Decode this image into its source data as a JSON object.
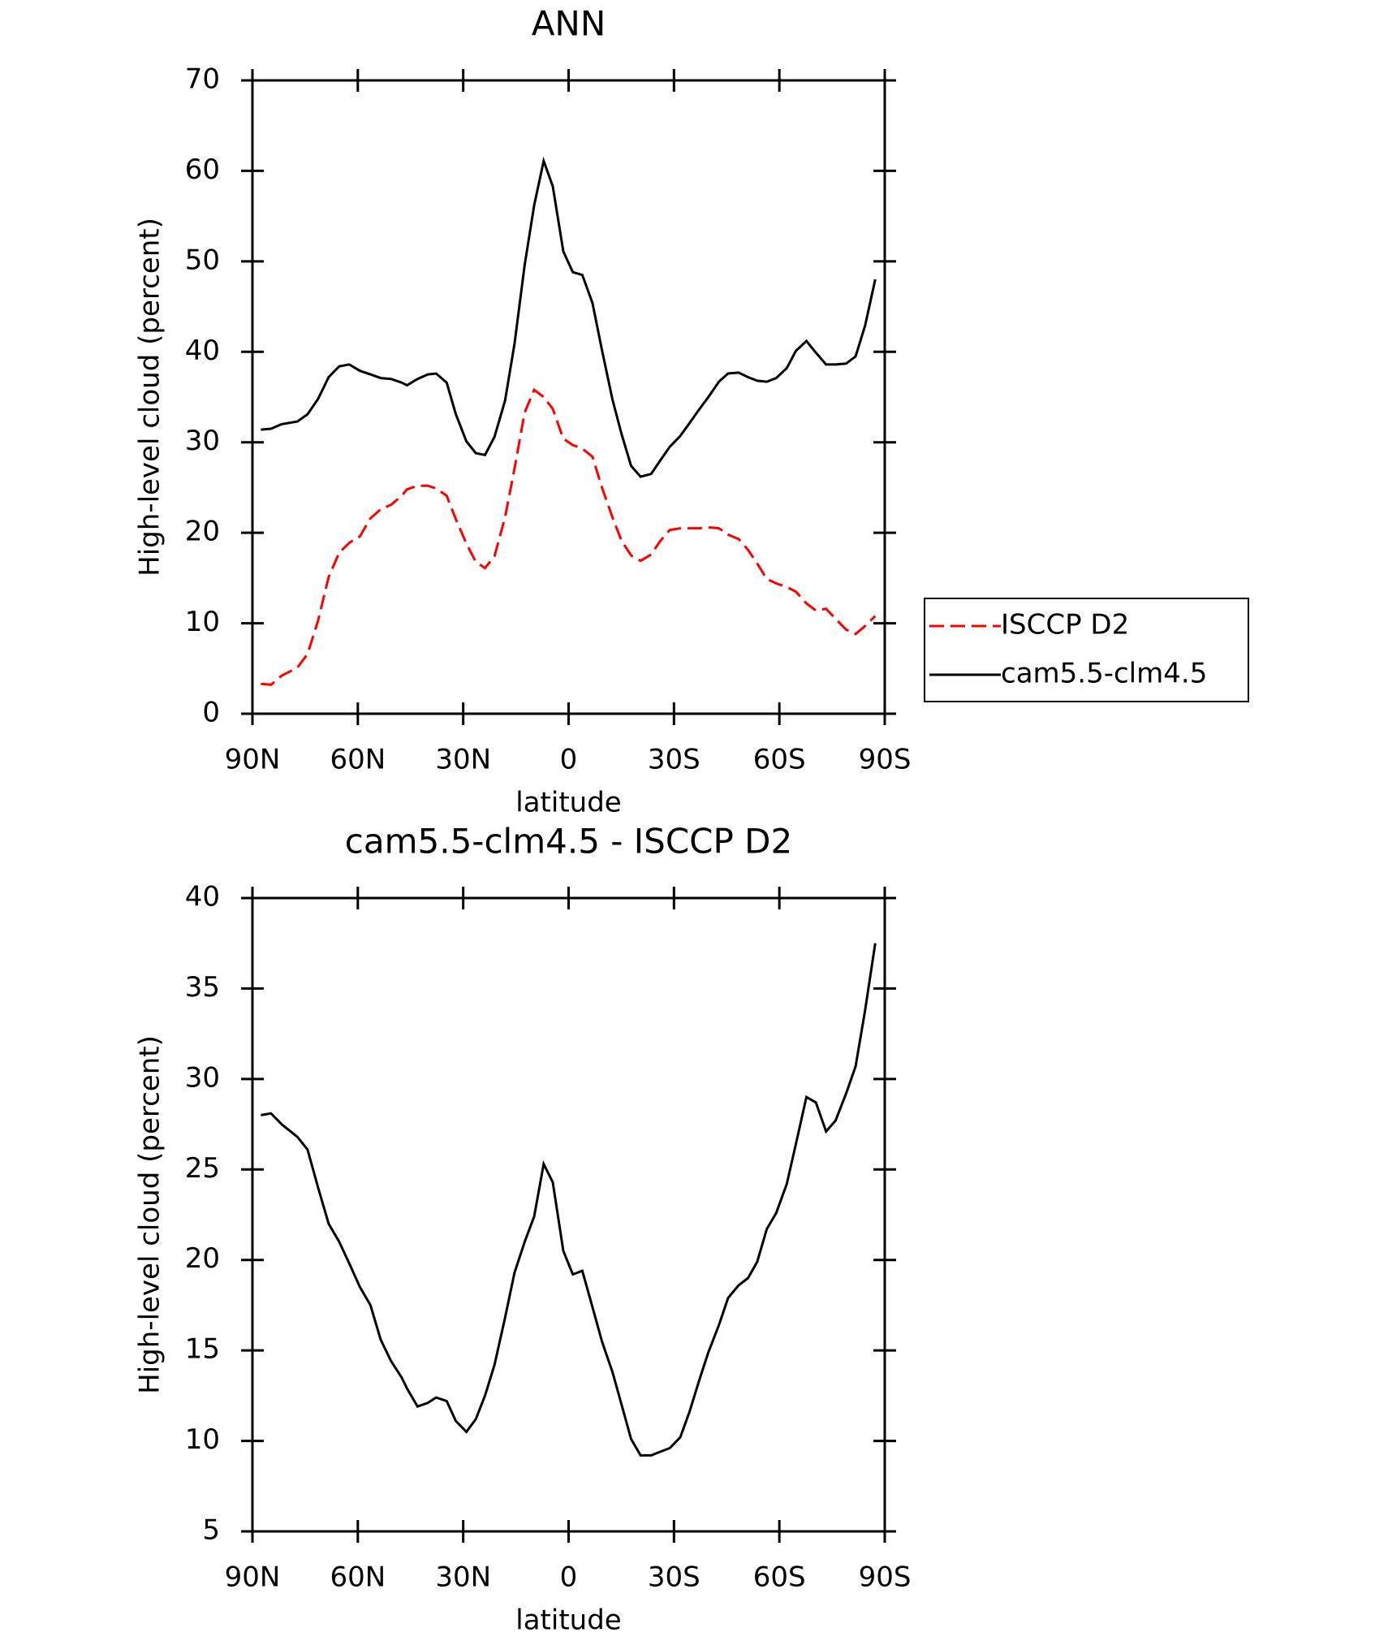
{
  "chart_data": [
    {
      "type": "line",
      "title": "ANN",
      "xlabel": "latitude",
      "ylabel": "High-level cloud (percent)",
      "x": [
        87.6,
        84.7,
        81.7,
        77.2,
        74.3,
        71.3,
        68.3,
        65.3,
        62.4,
        59.4,
        56.4,
        53.5,
        50.5,
        47.5,
        46,
        43,
        40.1,
        37.7,
        34.7,
        32.1,
        29.1,
        26.4,
        23.8,
        21.1,
        18.1,
        15.4,
        12.5,
        9.8,
        7.1,
        4.5,
        1.5,
        -1.2,
        -3.9,
        -6.8,
        -9.5,
        -12.5,
        -15.1,
        -17.8,
        -20.5,
        -23.5,
        -26.1,
        -28.8,
        -31.8,
        -34.4,
        -37.1,
        -39.8,
        -42.8,
        -45.4,
        -48.4,
        -51.1,
        -53.7,
        -56.4,
        -59.1,
        -62.1,
        -64.7,
        -67.7,
        -70.4,
        -73.3,
        -76,
        -79,
        -81.7,
        -84.4,
        -87.3
      ],
      "series": [
        {
          "name": "ISCCP D2",
          "color": "#ff0000",
          "dash": "dashed",
          "values": [
            3.3,
            3.2,
            4.2,
            5.1,
            6.6,
            10.3,
            15.1,
            17.8,
            18.9,
            19.6,
            21.6,
            22.6,
            23.1,
            24.1,
            24.8,
            25.2,
            25.2,
            24.9,
            24.1,
            21.5,
            18.8,
            16.8,
            16.1,
            17.4,
            21.7,
            27.1,
            33.3,
            35.8,
            35,
            33.7,
            30.4,
            29.7,
            29.3,
            28.4,
            25,
            21.7,
            19.1,
            17.5,
            16.9,
            17.6,
            19.1,
            20.3,
            20.5,
            20.5,
            20.5,
            20.6,
            20.5,
            19.8,
            19.3,
            18.1,
            16.6,
            14.9,
            14.4,
            14,
            13.5,
            12.2,
            11.4,
            11.6,
            10.5,
            9.3,
            8.8,
            9.7,
            10.8
          ]
        },
        {
          "name": "cam5.5-clm4.5",
          "color": "#000000",
          "dash": "solid",
          "values": [
            31.4,
            31.5,
            32,
            32.3,
            33.1,
            34.8,
            37.2,
            38.4,
            38.6,
            37.9,
            37.5,
            37.1,
            37,
            36.6,
            36.3,
            37,
            37.5,
            37.6,
            36.6,
            33.1,
            30.1,
            28.8,
            28.6,
            30.6,
            34.6,
            40.9,
            49.6,
            56.2,
            61.1,
            58.3,
            51.1,
            48.8,
            48.5,
            45.4,
            40.2,
            34.7,
            30.9,
            27.4,
            26.2,
            26.5,
            28,
            29.5,
            30.7,
            32.1,
            33.6,
            35,
            36.7,
            37.6,
            37.7,
            37.2,
            36.8,
            36.7,
            37.1,
            38.2,
            40.1,
            41.2,
            39.9,
            38.6,
            38.6,
            38.7,
            39.5,
            42.9,
            48
          ]
        }
      ],
      "xlim": [
        90,
        -90
      ],
      "xticks": [
        {
          "value": 90,
          "label": "90N"
        },
        {
          "value": 60,
          "label": "60N"
        },
        {
          "value": 30,
          "label": "30N"
        },
        0,
        {
          "value": -30,
          "label": "30S"
        },
        {
          "value": -60,
          "label": "60S"
        },
        {
          "value": -90,
          "label": "90S"
        }
      ],
      "ylim": [
        0,
        70
      ],
      "yticks": [
        0,
        10,
        20,
        30,
        40,
        50,
        60,
        70
      ],
      "legend": "right"
    },
    {
      "type": "line",
      "title": "cam5.5-clm4.5 - ISCCP D2",
      "xlabel": "latitude",
      "ylabel": "High-level cloud (percent)",
      "x": [
        87.6,
        84.7,
        81.7,
        77.2,
        74.3,
        71.3,
        68.3,
        65.3,
        62.4,
        59.4,
        56.4,
        53.5,
        50.5,
        47.5,
        46,
        43,
        40.1,
        37.7,
        34.7,
        32.1,
        29.1,
        26.4,
        23.8,
        21.1,
        18.1,
        15.4,
        12.5,
        9.8,
        7.1,
        4.5,
        1.5,
        -1.2,
        -3.9,
        -6.8,
        -9.5,
        -12.5,
        -15.1,
        -17.8,
        -20.5,
        -23.5,
        -26.1,
        -28.8,
        -31.8,
        -34.4,
        -37.1,
        -39.8,
        -42.8,
        -45.4,
        -48.4,
        -51.1,
        -53.7,
        -56.4,
        -59.1,
        -62.1,
        -64.7,
        -67.7,
        -70.4,
        -73.3,
        -76,
        -79,
        -81.7,
        -84.4,
        -87.3
      ],
      "series": [
        {
          "color": "#000000",
          "dash": "solid",
          "values": [
            28,
            28.1,
            27.5,
            26.8,
            26.1,
            24,
            22,
            21,
            19.8,
            18.5,
            17.5,
            15.6,
            14.4,
            13.5,
            12.9,
            11.9,
            12.1,
            12.4,
            12.2,
            11.1,
            10.5,
            11.2,
            12.5,
            14.2,
            16.8,
            19.3,
            21,
            22.4,
            25.3,
            24.3,
            20.5,
            19.2,
            19.4,
            17.4,
            15.5,
            13.8,
            12,
            10.1,
            9.2,
            9.2,
            9.4,
            9.6,
            10.2,
            11.6,
            13.3,
            14.9,
            16.4,
            17.9,
            18.6,
            19,
            19.9,
            21.7,
            22.6,
            24.2,
            26.4,
            29,
            28.7,
            27.1,
            27.7,
            29.2,
            30.7,
            33.8,
            37.5
          ]
        }
      ],
      "xlim": [
        90,
        -90
      ],
      "xticks": [
        {
          "value": 90,
          "label": "90N"
        },
        {
          "value": 60,
          "label": "60N"
        },
        {
          "value": 30,
          "label": "30N"
        },
        0,
        {
          "value": -30,
          "label": "30S"
        },
        {
          "value": -60,
          "label": "60S"
        },
        {
          "value": -90,
          "label": "90S"
        }
      ],
      "ylim": [
        5,
        40
      ],
      "yticks": [
        5,
        10,
        15,
        20,
        25,
        30,
        35,
        40
      ]
    }
  ]
}
